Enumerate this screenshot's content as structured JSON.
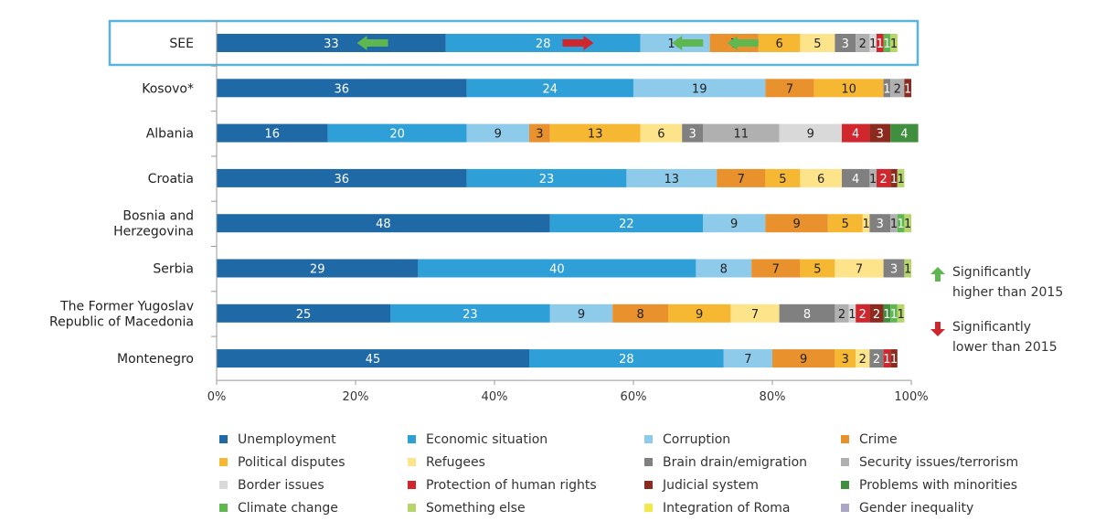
{
  "chart_data": {
    "type": "bar",
    "stacked": true,
    "orientation": "horizontal",
    "title": "",
    "xlabel": "",
    "ylabel": "",
    "xlim": [
      0,
      100
    ],
    "x_ticks": [
      "0%",
      "20%",
      "40%",
      "60%",
      "80%",
      "100%"
    ],
    "highlighted_category": "SEE",
    "legend_position": "bottom",
    "categories": [
      {
        "label_lines": [
          "SEE"
        ]
      },
      {
        "label_lines": [
          "Kosovo*"
        ]
      },
      {
        "label_lines": [
          "Albania"
        ]
      },
      {
        "label_lines": [
          "Croatia"
        ]
      },
      {
        "label_lines": [
          "Bosnia and",
          "Herzegovina"
        ]
      },
      {
        "label_lines": [
          "Serbia"
        ]
      },
      {
        "label_lines": [
          "The Former Yugoslav",
          "Republic of Macedonia"
        ]
      },
      {
        "label_lines": [
          "Montenegro"
        ]
      }
    ],
    "series": [
      {
        "name": "Unemployment",
        "color": "#1f6aa6",
        "values": [
          33,
          36,
          16,
          36,
          48,
          29,
          25,
          45
        ]
      },
      {
        "name": "Economic situation",
        "color": "#2f9fd8",
        "values": [
          28,
          24,
          20,
          23,
          22,
          40,
          23,
          28
        ]
      },
      {
        "name": "Corruption",
        "color": "#8ecbeb",
        "values": [
          10,
          19,
          9,
          13,
          9,
          8,
          9,
          7
        ]
      },
      {
        "name": "Crime",
        "color": "#e8912d",
        "values": [
          7,
          7,
          3,
          7,
          9,
          7,
          8,
          9
        ]
      },
      {
        "name": "Political disputes",
        "color": "#f6b732",
        "values": [
          6,
          10,
          13,
          5,
          5,
          5,
          9,
          3
        ]
      },
      {
        "name": "Refugees",
        "color": "#fde38a",
        "values": [
          5,
          0,
          6,
          6,
          1,
          7,
          7,
          2
        ]
      },
      {
        "name": "Brain drain/emigration",
        "color": "#808080",
        "values": [
          3,
          1,
          3,
          4,
          3,
          3,
          8,
          2
        ]
      },
      {
        "name": "Security issues/terrorism",
        "color": "#b0b0b0",
        "values": [
          2,
          2,
          11,
          1,
          1,
          0,
          2,
          0
        ]
      },
      {
        "name": "Border issues",
        "color": "#d9d9d9",
        "values": [
          1,
          0,
          9,
          0,
          0,
          0,
          1,
          0
        ]
      },
      {
        "name": "Protection of human rights",
        "color": "#d0262e",
        "values": [
          1,
          0,
          4,
          2,
          0,
          0,
          2,
          1
        ]
      },
      {
        "name": "Judicial system",
        "color": "#8b2a1e",
        "values": [
          0,
          1,
          3,
          1,
          0,
          0,
          2,
          1
        ]
      },
      {
        "name": "Problems with minorities",
        "color": "#3f8f3f",
        "values": [
          0,
          0,
          4,
          0,
          0,
          0,
          1,
          0
        ]
      },
      {
        "name": "Climate change",
        "color": "#5fb84f",
        "values": [
          1,
          0,
          0,
          0,
          1,
          0,
          1,
          0
        ]
      },
      {
        "name": "Something else",
        "color": "#b6d66b",
        "values": [
          1,
          0,
          0,
          1,
          1,
          1,
          1,
          0
        ]
      },
      {
        "name": "Integration of Roma",
        "color": "#f2e84a",
        "values": [
          0,
          0,
          0,
          0,
          0,
          0,
          0,
          0
        ]
      },
      {
        "name": "Gender inequality",
        "color": "#a9a6c6",
        "values": [
          0,
          0,
          0,
          0,
          0,
          0,
          0,
          0
        ]
      }
    ],
    "significance_markers": [
      {
        "category": "SEE",
        "series": "Unemployment",
        "direction": "higher"
      },
      {
        "category": "SEE",
        "series": "Economic situation",
        "direction": "lower"
      },
      {
        "category": "SEE",
        "series": "Corruption",
        "direction": "higher"
      },
      {
        "category": "SEE",
        "series": "Crime",
        "direction": "higher"
      }
    ],
    "notes": [
      {
        "direction": "higher",
        "color": "#5fb84f",
        "lines": [
          "Significantly",
          "higher than 2015"
        ]
      },
      {
        "direction": "lower",
        "color": "#d0262e",
        "lines": [
          "Significantly",
          "lower than 2015"
        ]
      }
    ]
  }
}
